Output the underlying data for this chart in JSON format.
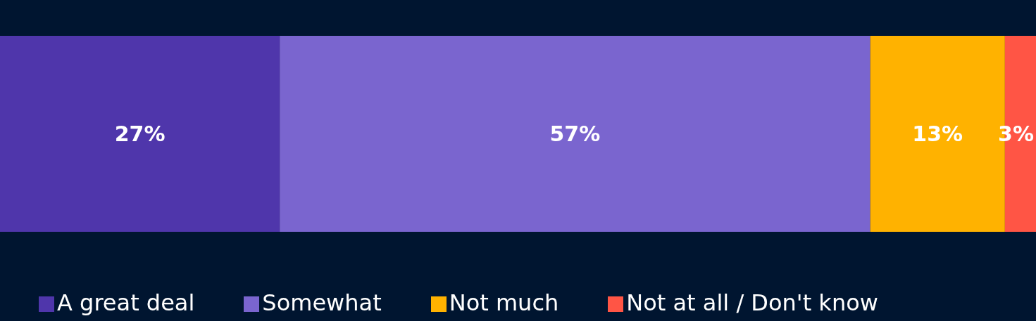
{
  "chart_data": {
    "type": "bar",
    "orientation": "horizontal",
    "stacked": true,
    "categories": [
      null
    ],
    "legend": "bottom",
    "series": [
      {
        "name": "A great deal",
        "color": "#4f36ab",
        "values": [
          27
        ],
        "value_labels": [
          "27%"
        ]
      },
      {
        "name": "Somewhat",
        "color": "#7a65cf",
        "values": [
          57
        ],
        "value_labels": [
          "57%"
        ]
      },
      {
        "name": "Not much",
        "color": "#ffb200",
        "values": [
          13
        ],
        "value_labels": [
          "13%"
        ]
      },
      {
        "name": "Not at all / Don't know",
        "color": "#ff5545",
        "values": [
          3
        ],
        "value_labels": [
          "3%"
        ]
      }
    ]
  }
}
